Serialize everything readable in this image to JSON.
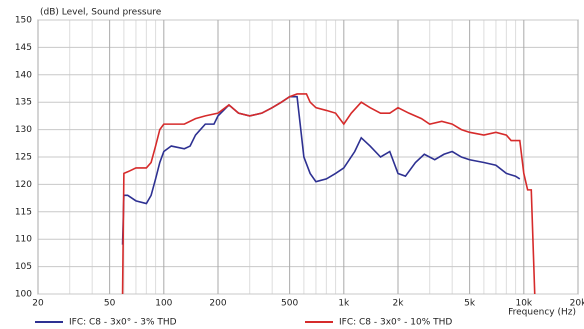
{
  "chart_data": {
    "type": "line",
    "ylabel": "(dB)  Level, Sound pressure",
    "xlabel": "Frequency  (Hz)",
    "log_x": true,
    "grid": true,
    "xlim": [
      20,
      20000
    ],
    "ylim": [
      100,
      150
    ],
    "xticks": [
      20,
      50,
      100,
      200,
      500,
      {
        "value": 1000,
        "label": "1k"
      },
      {
        "value": 2000,
        "label": "2k"
      },
      {
        "value": 5000,
        "label": "5k"
      },
      {
        "value": 10000,
        "label": "10k"
      },
      {
        "value": 20000,
        "label": "20k"
      }
    ],
    "xminorticks": [
      30,
      40,
      60,
      70,
      80,
      90,
      300,
      400,
      600,
      700,
      800,
      900,
      3000,
      4000,
      6000,
      7000,
      8000,
      9000
    ],
    "yticks": [
      100,
      105,
      110,
      115,
      120,
      125,
      130,
      135,
      140,
      145,
      150
    ],
    "series": [
      {
        "name": "IFC: C8 - 3x0° - 3% THD",
        "color": "#2e3192",
        "x": [
          59,
          60,
          63,
          70,
          80,
          85,
          90,
          95,
          100,
          110,
          130,
          140,
          150,
          170,
          190,
          200,
          230,
          260,
          300,
          350,
          400,
          450,
          500,
          550,
          600,
          650,
          700,
          800,
          900,
          1000,
          1150,
          1250,
          1400,
          1600,
          1800,
          2000,
          2200,
          2500,
          2800,
          3200,
          3600,
          4000,
          4500,
          5000,
          6000,
          7000,
          8000,
          9000,
          9500
        ],
        "values": [
          109,
          118,
          118,
          117,
          116.5,
          118,
          121,
          124,
          126,
          127,
          126.5,
          127,
          129,
          131,
          131,
          132.5,
          134.5,
          133,
          132.5,
          133,
          134,
          135,
          136,
          136,
          125,
          122,
          120.5,
          121,
          122,
          123,
          126,
          128.5,
          127,
          125,
          126,
          122,
          121.5,
          124,
          125.5,
          124.5,
          125.5,
          126,
          125,
          124.5,
          124,
          123.5,
          122,
          121.5,
          121
        ]
      },
      {
        "name": "IFC: C8 - 3x0° - 10% THD",
        "color": "#d62b2b",
        "x": [
          59,
          60,
          65,
          70,
          80,
          85,
          90,
          95,
          100,
          130,
          150,
          170,
          200,
          230,
          260,
          300,
          350,
          400,
          450,
          500,
          550,
          620,
          650,
          700,
          800,
          900,
          1000,
          1100,
          1250,
          1400,
          1600,
          1800,
          2000,
          2300,
          2700,
          3000,
          3500,
          4000,
          4500,
          5000,
          6000,
          7000,
          8000,
          8500,
          9500,
          10000,
          10500,
          11000,
          11500
        ],
        "values": [
          100,
          122,
          122.5,
          123,
          123,
          124,
          127,
          130,
          131,
          131,
          132,
          132.5,
          133,
          134.5,
          133,
          132.5,
          133,
          134,
          135,
          136,
          136.5,
          136.5,
          135,
          134,
          133.5,
          133,
          131,
          133,
          135,
          134,
          133,
          133,
          134,
          133,
          132,
          131,
          131.5,
          131,
          130,
          129.5,
          129,
          129.5,
          129,
          128,
          128,
          122,
          119,
          119,
          100
        ]
      }
    ]
  }
}
